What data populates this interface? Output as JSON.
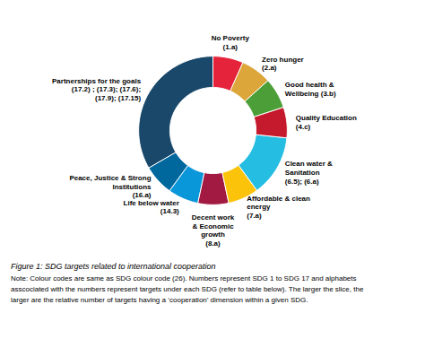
{
  "chart_data": {
    "type": "pie",
    "title": "Figure 1: SDG targets related to international cooperation",
    "categories": [
      "No Poverty\n(1.a)",
      "Zero hunger\n(2.a)",
      "Good health &\nWellbeing (3.b)",
      "Quality Education\n(4.c)",
      "Clean water &\nSanitation\n(6.5); (6.a)",
      "Affordable & clean\nenergy\n(7.a)",
      "Decent work\n& Economic\ngrowth\n(8.a)",
      "Life below water\n(14.3)",
      "Peace, Justice & Strong\nInstitutions\n(16.a)",
      "Partnerships for the goals\n(17.2) ; (17.3); (17.6);\n(17.9); (17.15)"
    ],
    "values": [
      1,
      1,
      1,
      1,
      2,
      1,
      1,
      1,
      1,
      5
    ],
    "colors": [
      "#E5243B",
      "#DDA63A",
      "#4C9F38",
      "#C5192D",
      "#26BDE2",
      "#FCC30B",
      "#A21942",
      "#0A97D9",
      "#00689D",
      "#19486A"
    ],
    "annotations": [
      "Note: Colour codes are same as SDG colour code (26). Numbers represent SDG 1 to SDG 17 and alphabets",
      "asscociated with the numbers represent targets under each SDG (refer to table below). The larger the slice, the",
      "larger are the relative number of targets having a ‘cooperation’ dimension within a given SDG."
    ]
  }
}
